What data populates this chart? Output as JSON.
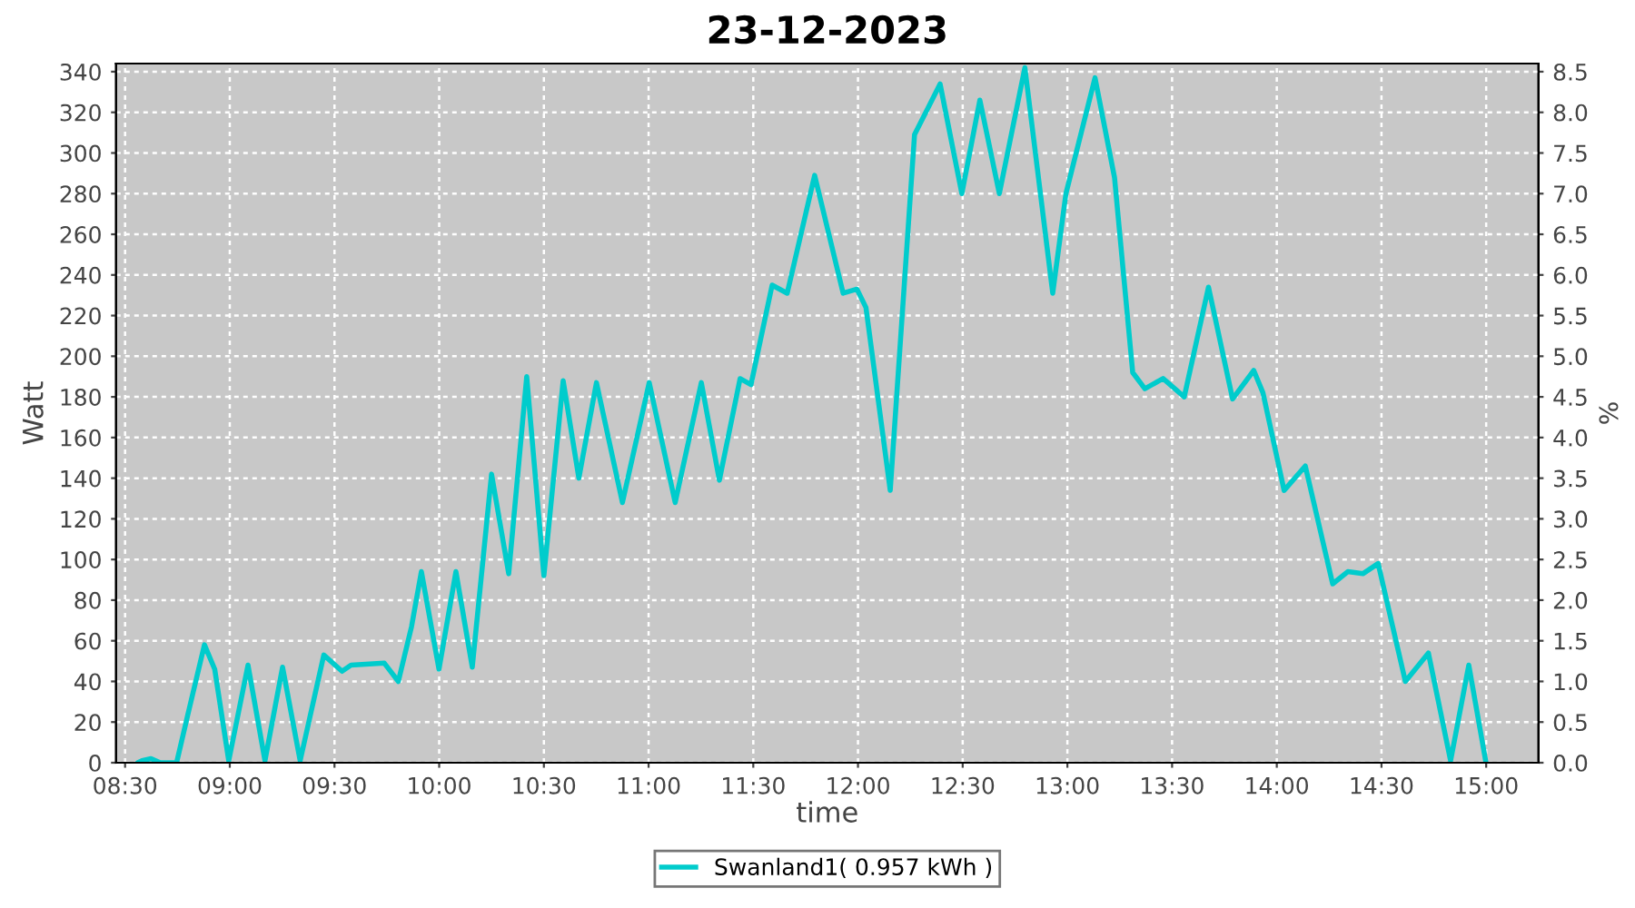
{
  "chart_data": {
    "type": "line",
    "title": "23-12-2023",
    "xlabel": "time",
    "ylabel": "Watt",
    "y2label": "%",
    "x": [
      8.56,
      8.581,
      8.624,
      8.668,
      8.746,
      8.798,
      8.879,
      8.928,
      8.995,
      9.087,
      9.168,
      9.252,
      9.336,
      9.449,
      9.536,
      9.579,
      9.738,
      9.805,
      9.868,
      9.915,
      9.999,
      10.08,
      10.158,
      10.25,
      10.332,
      10.418,
      10.5,
      10.592,
      10.667,
      10.751,
      10.875,
      11.003,
      11.127,
      11.252,
      11.338,
      11.437,
      11.489,
      11.59,
      11.662,
      11.793,
      11.929,
      11.995,
      12.038,
      12.154,
      12.27,
      12.392,
      12.496,
      12.582,
      12.675,
      12.797,
      12.93,
      12.993,
      13.132,
      13.225,
      13.312,
      13.37,
      13.457,
      13.558,
      13.674,
      13.789,
      13.89,
      13.934,
      14.035,
      14.136,
      14.267,
      14.339,
      14.411,
      14.484,
      14.614,
      14.724,
      14.83,
      14.917,
      14.999
    ],
    "series": [
      {
        "name": "Swanland1( 0.957 kWh )",
        "color": "#00cccc",
        "values": [
          0,
          1,
          2,
          0,
          0,
          23,
          58,
          46,
          1,
          48,
          1,
          47,
          1,
          53,
          45,
          48,
          49,
          40,
          67,
          94,
          46,
          94,
          47,
          142,
          93,
          190,
          92,
          188,
          140,
          187,
          128,
          187,
          128,
          187,
          139,
          189,
          186,
          235,
          231,
          289,
          231,
          233,
          224,
          134,
          309,
          334,
          280,
          326,
          280,
          342,
          231,
          280,
          337,
          288,
          192,
          184,
          189,
          180,
          234,
          179,
          193,
          182,
          134,
          146,
          88,
          94,
          93,
          98,
          40,
          54,
          1,
          48,
          0
        ]
      }
    ],
    "xlim": [
      8.457,
      15.25
    ],
    "xticks": [
      {
        "value": 8.5,
        "label": "08:30"
      },
      {
        "value": 9.0,
        "label": "09:00"
      },
      {
        "value": 9.5,
        "label": "09:30"
      },
      {
        "value": 10.0,
        "label": "10:00"
      },
      {
        "value": 10.5,
        "label": "10:30"
      },
      {
        "value": 11.0,
        "label": "11:00"
      },
      {
        "value": 11.5,
        "label": "11:30"
      },
      {
        "value": 12.0,
        "label": "12:00"
      },
      {
        "value": 12.5,
        "label": "12:30"
      },
      {
        "value": 13.0,
        "label": "13:00"
      },
      {
        "value": 13.5,
        "label": "13:30"
      },
      {
        "value": 14.0,
        "label": "14:00"
      },
      {
        "value": 14.5,
        "label": "14:30"
      },
      {
        "value": 15.0,
        "label": "15:00"
      }
    ],
    "ylim": [
      0,
      344
    ],
    "yticks": [
      0,
      20,
      40,
      60,
      80,
      100,
      120,
      140,
      160,
      180,
      200,
      220,
      240,
      260,
      280,
      300,
      320,
      340
    ],
    "y2lim": [
      0,
      8.6
    ],
    "y2ticks": [
      {
        "value": 0,
        "label": "0.0"
      },
      {
        "value": 0.5,
        "label": "0.5"
      },
      {
        "value": 1,
        "label": "1.0"
      },
      {
        "value": 1.5,
        "label": "1.5"
      },
      {
        "value": 2,
        "label": "2.0"
      },
      {
        "value": 2.5,
        "label": "2.5"
      },
      {
        "value": 3,
        "label": "3.0"
      },
      {
        "value": 3.5,
        "label": "3.5"
      },
      {
        "value": 4,
        "label": "4.0"
      },
      {
        "value": 4.5,
        "label": "4.5"
      },
      {
        "value": 5,
        "label": "5.0"
      },
      {
        "value": 5.5,
        "label": "5.5"
      },
      {
        "value": 6,
        "label": "6.0"
      },
      {
        "value": 6.5,
        "label": "6.5"
      },
      {
        "value": 7,
        "label": "7.0"
      },
      {
        "value": 7.5,
        "label": "7.5"
      },
      {
        "value": 8,
        "label": "8.0"
      },
      {
        "value": 8.5,
        "label": "8.5"
      }
    ],
    "grid": true,
    "legend": "bottom",
    "line_style": "solid",
    "marker": "none"
  }
}
